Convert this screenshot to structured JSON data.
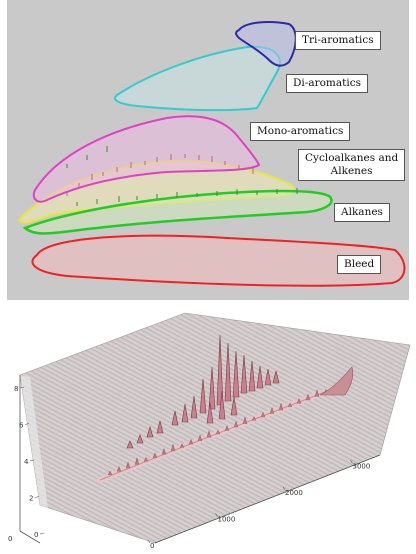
{
  "chart_data": [
    {
      "type": "other",
      "title": "",
      "regions": [
        {
          "label": "Tri-aromatics",
          "color": "#2a2aa8"
        },
        {
          "label": "Di-aromatics",
          "color": "#33cccc"
        },
        {
          "label": "Mono-aromatics",
          "color": "#e040c8"
        },
        {
          "label": "Cycloalkanes and\nAlkenes",
          "color": "#e8e83a"
        },
        {
          "label": "Alkanes",
          "color": "#22cc22"
        },
        {
          "label": "Bleed",
          "color": "#ee2222"
        }
      ],
      "background": "#c9c9c9"
    },
    {
      "type": "surface",
      "title": "",
      "x_ticks": [
        "0",
        "1000",
        "2000",
        "3000"
      ],
      "y_ticks": [
        "0",
        "2",
        "4",
        "6",
        "8"
      ],
      "z_ticks": [
        "0"
      ],
      "colormap": [
        "#c8c8c8",
        "#d9b8b8",
        "#b05868"
      ]
    }
  ]
}
